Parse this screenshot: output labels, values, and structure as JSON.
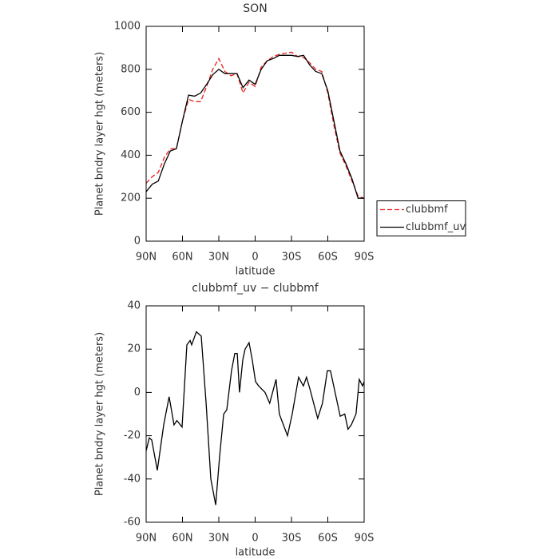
{
  "chart_data": [
    {
      "type": "line",
      "title": "SON",
      "xlabel": "latitude",
      "ylabel": "Planet bndry layer hgt (meters)",
      "x": [
        90,
        85,
        80,
        75,
        70,
        65,
        60,
        55,
        50,
        45,
        40,
        35,
        30,
        25,
        20,
        15,
        10,
        5,
        0,
        -5,
        -10,
        -15,
        -20,
        -25,
        -30,
        -35,
        -40,
        -45,
        -50,
        -55,
        -60,
        -65,
        -70,
        -75,
        -80,
        -85,
        -90
      ],
      "series": [
        {
          "name": "clubbmf",
          "color": "#e8201e",
          "linestyle": "dashed",
          "values": [
            270,
            300,
            320,
            390,
            430,
            430,
            560,
            660,
            650,
            650,
            720,
            800,
            850,
            790,
            770,
            780,
            690,
            740,
            720,
            810,
            840,
            860,
            870,
            875,
            880,
            860,
            855,
            830,
            800,
            790,
            690,
            540,
            410,
            350,
            280,
            210,
            200
          ]
        },
        {
          "name": "clubbmf_uv",
          "color": "#000000",
          "linestyle": "solid",
          "values": [
            230,
            265,
            280,
            360,
            420,
            430,
            560,
            680,
            675,
            690,
            730,
            775,
            800,
            780,
            780,
            780,
            715,
            750,
            730,
            800,
            840,
            850,
            865,
            865,
            865,
            860,
            865,
            820,
            790,
            780,
            700,
            560,
            420,
            360,
            290,
            200,
            200
          ]
        }
      ],
      "xlim": [
        90,
        -90
      ],
      "xticks": [
        {
          "value": 90,
          "label": "90N"
        },
        {
          "value": 60,
          "label": "60N"
        },
        {
          "value": 30,
          "label": "30N"
        },
        0,
        {
          "value": -30,
          "label": "30S"
        },
        {
          "value": -60,
          "label": "60S"
        },
        {
          "value": -90,
          "label": "90S"
        }
      ],
      "ylim": [
        0,
        1000
      ],
      "yticks": [
        0,
        200,
        400,
        600,
        800,
        1000
      ],
      "legend": "right"
    },
    {
      "type": "line",
      "title": "clubbmf_uv − clubbmf",
      "xlabel": "latitude",
      "ylabel": "Planet bndry layer hgt (meters)",
      "x": [
        90,
        87.4,
        85.4,
        80.8,
        75.5,
        71,
        67,
        64.6,
        60.3,
        56.4,
        53.7,
        52.4,
        48.5,
        44.5,
        40.5,
        36.6,
        32.6,
        29.4,
        26,
        23.4,
        19.5,
        16.8,
        14.8,
        12.9,
        10.2,
        8.3,
        5,
        2.4,
        -0.3,
        -2.9,
        -8.2,
        -12,
        -17.3,
        -20,
        -26.7,
        -30.6,
        -35.9,
        -39.8,
        -42.4,
        -45,
        -51.6,
        -55.6,
        -59.6,
        -62.2,
        -70.2,
        -74,
        -76.7,
        -79.4,
        -83.3,
        -86,
        -88.7,
        -90
      ],
      "series": [
        {
          "color": "#000000",
          "linestyle": "solid",
          "values": [
            -27,
            -21,
            -22,
            -36,
            -15,
            -2,
            -15,
            -13,
            -16,
            22,
            24,
            22,
            28,
            26,
            -5,
            -40,
            -52,
            -30,
            -10,
            -8,
            10,
            18,
            18,
            0,
            15,
            20,
            23,
            15,
            5,
            3,
            0,
            -5,
            6,
            -10,
            -20,
            -10,
            7,
            3,
            7,
            2,
            -12,
            -5,
            10,
            10,
            -11,
            -10,
            -17,
            -15,
            -10,
            6,
            3,
            5
          ]
        }
      ],
      "xlim": [
        90,
        -90
      ],
      "xticks": [
        {
          "value": 90,
          "label": "90N"
        },
        {
          "value": 60,
          "label": "60N"
        },
        {
          "value": 30,
          "label": "30N"
        },
        0,
        {
          "value": -30,
          "label": "30S"
        },
        {
          "value": -60,
          "label": "60S"
        },
        {
          "value": -90,
          "label": "90S"
        }
      ],
      "ylim": [
        -60,
        40
      ],
      "yticks": [
        -60,
        -40,
        -20,
        0,
        20,
        40
      ]
    }
  ]
}
